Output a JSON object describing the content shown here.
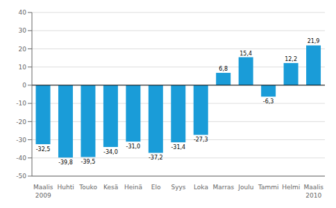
{
  "chart_data": {
    "type": "bar",
    "categories": [
      "Maalis",
      "Huhti",
      "Touko",
      "Kesä",
      "Heinä",
      "Elo",
      "Syys",
      "Loka",
      "Marras",
      "Joulu",
      "Tammi",
      "Helmi",
      "Maalis"
    ],
    "values": [
      -32.5,
      -39.8,
      -39.5,
      -34.0,
      -31.0,
      -37.2,
      -31.4,
      -27.3,
      6.8,
      15.4,
      -6.3,
      12.2,
      21.9
    ],
    "value_labels": [
      "-32,5",
      "-39,8",
      "-39,5",
      "-34,0",
      "-31,0",
      "-37,2",
      "-31,4",
      "-27,3",
      "6,8",
      "15,4",
      "-6,3",
      "12,2",
      "21,9"
    ],
    "data_labels": true,
    "color": "#1a9cd8",
    "ylim": [
      -50,
      40
    ],
    "yticks": [
      -50,
      -40,
      -30,
      -20,
      -10,
      0,
      10,
      20,
      30,
      40
    ],
    "grid": true,
    "annotations": [
      {
        "index": 0,
        "text": "2009"
      },
      {
        "index": 12,
        "text": "2010"
      }
    ]
  }
}
